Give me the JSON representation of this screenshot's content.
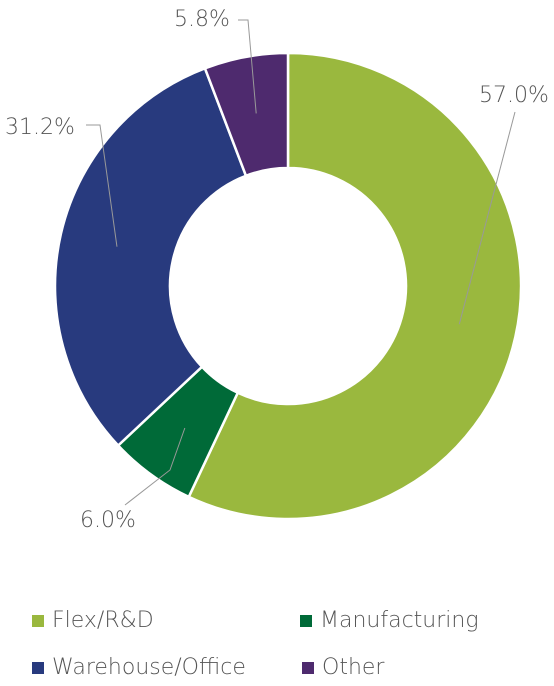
{
  "chart_data": {
    "type": "donut",
    "categories": [
      "Flex/R&D",
      "Manufacturing",
      "Warehouse/Office",
      "Other"
    ],
    "values": [
      57.0,
      6.0,
      31.2,
      5.8
    ],
    "value_labels": [
      "57.0%",
      "6.0%",
      "31.2%",
      "5.8%"
    ],
    "colors": [
      "#9ab83e",
      "#006a38",
      "#283a7e",
      "#4e2a6e"
    ],
    "legend": "bottom"
  }
}
